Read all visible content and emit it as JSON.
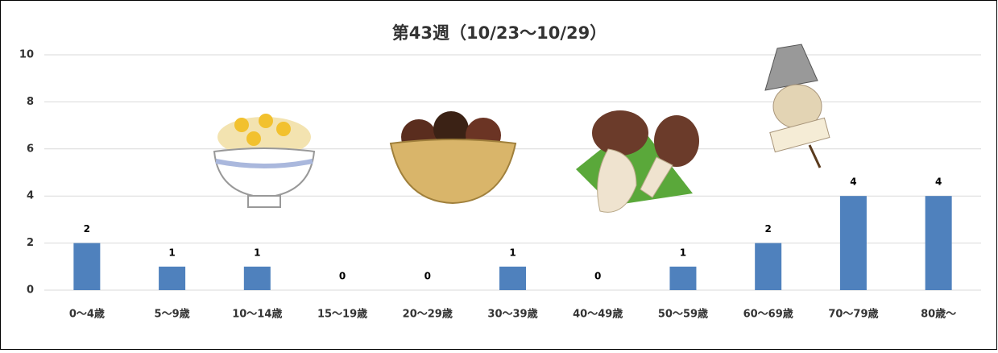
{
  "chart_data": {
    "type": "bar",
    "title": "第43週（10/23～10/29）",
    "categories": [
      "0～4歳",
      "5～9歳",
      "10～14歳",
      "15～19歳",
      "20～29歳",
      "30～39歳",
      "40～49歳",
      "50～59歳",
      "60～69歳",
      "70～79歳",
      "80歳～"
    ],
    "values": [
      2,
      1,
      1,
      0,
      0,
      1,
      0,
      1,
      2,
      4,
      4
    ],
    "color": "#4f81bd",
    "ylim": [
      0,
      10
    ],
    "yticks": [
      0,
      2,
      4,
      6,
      8,
      10
    ],
    "grid": true
  }
}
